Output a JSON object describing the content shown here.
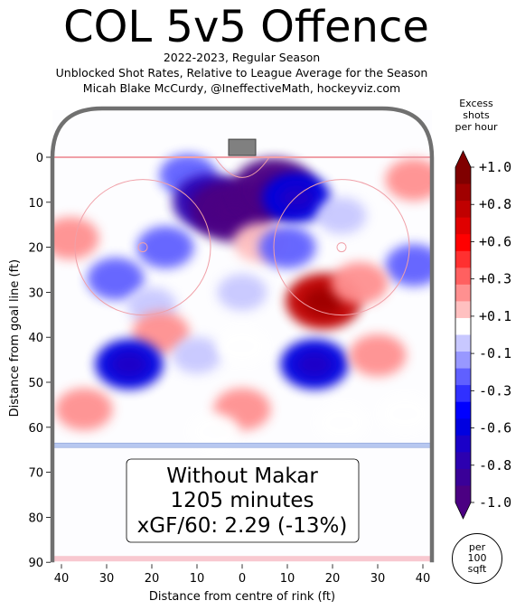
{
  "chart_data": {
    "type": "heatmap",
    "title": "COL 5v5 Offence",
    "subtitle_lines": [
      "2022-2023, Regular Season",
      "Unblocked Shot Rates, Relative to League Average for the Season",
      "Micah Blake McCurdy, @IneffectiveMath, hockeyviz.com"
    ],
    "xlabel": "Distance from centre of rink (ft)",
    "ylabel": "Distance from goal line (ft)",
    "xlim": [
      -42,
      42
    ],
    "ylim": [
      90,
      -11
    ],
    "x_ticks": [
      -40,
      -30,
      -20,
      -10,
      0,
      10,
      20,
      30,
      40
    ],
    "x_tick_labels": [
      "40",
      "30",
      "20",
      "10",
      "0",
      "10",
      "20",
      "30",
      "40"
    ],
    "y_ticks": [
      0,
      10,
      20,
      30,
      40,
      50,
      60,
      70,
      80,
      90
    ],
    "y_tick_labels": [
      "0",
      "10",
      "20",
      "30",
      "40",
      "50",
      "60",
      "70",
      "80",
      "90"
    ],
    "colorbar": {
      "title": "Excess\nshots\nper hour",
      "range": [
        -1.0,
        1.0
      ],
      "tick_labels": [
        "+1.0",
        "+0.8",
        "+0.6",
        "+0.3",
        "+0.1",
        "-0.1",
        "-0.3",
        "-0.6",
        "-0.8",
        "-1.0"
      ],
      "tick_values": [
        1.0,
        0.8,
        0.6,
        0.3,
        0.1,
        -0.1,
        -0.3,
        -0.6,
        -0.8,
        -1.0
      ],
      "colors": [
        "#800000",
        "#a00000",
        "#c00000",
        "#e00000",
        "#ff0000",
        "#ff3030",
        "#ff6060",
        "#ff9090",
        "#ffc0c0",
        "#ffffff",
        "#c8c8ff",
        "#9898ff",
        "#6060ff",
        "#3030ff",
        "#0000ff",
        "#0000e0",
        "#1a00c8",
        "#2c00b0",
        "#3a0098",
        "#4b0082"
      ]
    },
    "annotation_lines": [
      "Without Makar",
      "1205 minutes",
      "xGF/60: 2.29 (-13%)"
    ],
    "unit_badge": "per\n100\nsqft",
    "regions": [
      {
        "x": -12,
        "y": 4,
        "v": -0.3
      },
      {
        "x": -7,
        "y": 10,
        "v": -0.8
      },
      {
        "x": -2,
        "y": 12,
        "v": -1.0
      },
      {
        "x": 7,
        "y": 7,
        "v": -1.0
      },
      {
        "x": 12,
        "y": 9,
        "v": -0.6
      },
      {
        "x": -17,
        "y": 20,
        "v": -0.3
      },
      {
        "x": -28,
        "y": 27,
        "v": -0.3
      },
      {
        "x": -20,
        "y": 33,
        "v": -0.1
      },
      {
        "x": 4,
        "y": 19,
        "v": 0.2
      },
      {
        "x": 10,
        "y": 20,
        "v": -0.3
      },
      {
        "x": 22,
        "y": 13,
        "v": -0.1
      },
      {
        "x": 38,
        "y": 5,
        "v": 0.3
      },
      {
        "x": -38,
        "y": 18,
        "v": 0.3
      },
      {
        "x": 38,
        "y": 24,
        "v": -0.3
      },
      {
        "x": 18,
        "y": 32,
        "v": 0.8
      },
      {
        "x": 26,
        "y": 28,
        "v": 0.3
      },
      {
        "x": -18,
        "y": 39,
        "v": 0.3
      },
      {
        "x": -25,
        "y": 46,
        "v": -0.6
      },
      {
        "x": -10,
        "y": 44,
        "v": -0.1
      },
      {
        "x": 0,
        "y": 42,
        "v": 0.1
      },
      {
        "x": 16,
        "y": 46,
        "v": -0.6
      },
      {
        "x": 30,
        "y": 44,
        "v": 0.3
      },
      {
        "x": 0,
        "y": 56,
        "v": 0.3
      },
      {
        "x": -35,
        "y": 56,
        "v": 0.3
      },
      {
        "x": -6,
        "y": 61,
        "v": 0.1
      },
      {
        "x": 22,
        "y": 59,
        "v": 0.1
      },
      {
        "x": 36,
        "y": 57,
        "v": 0.1
      },
      {
        "x": 0,
        "y": 30,
        "v": -0.1
      }
    ]
  }
}
